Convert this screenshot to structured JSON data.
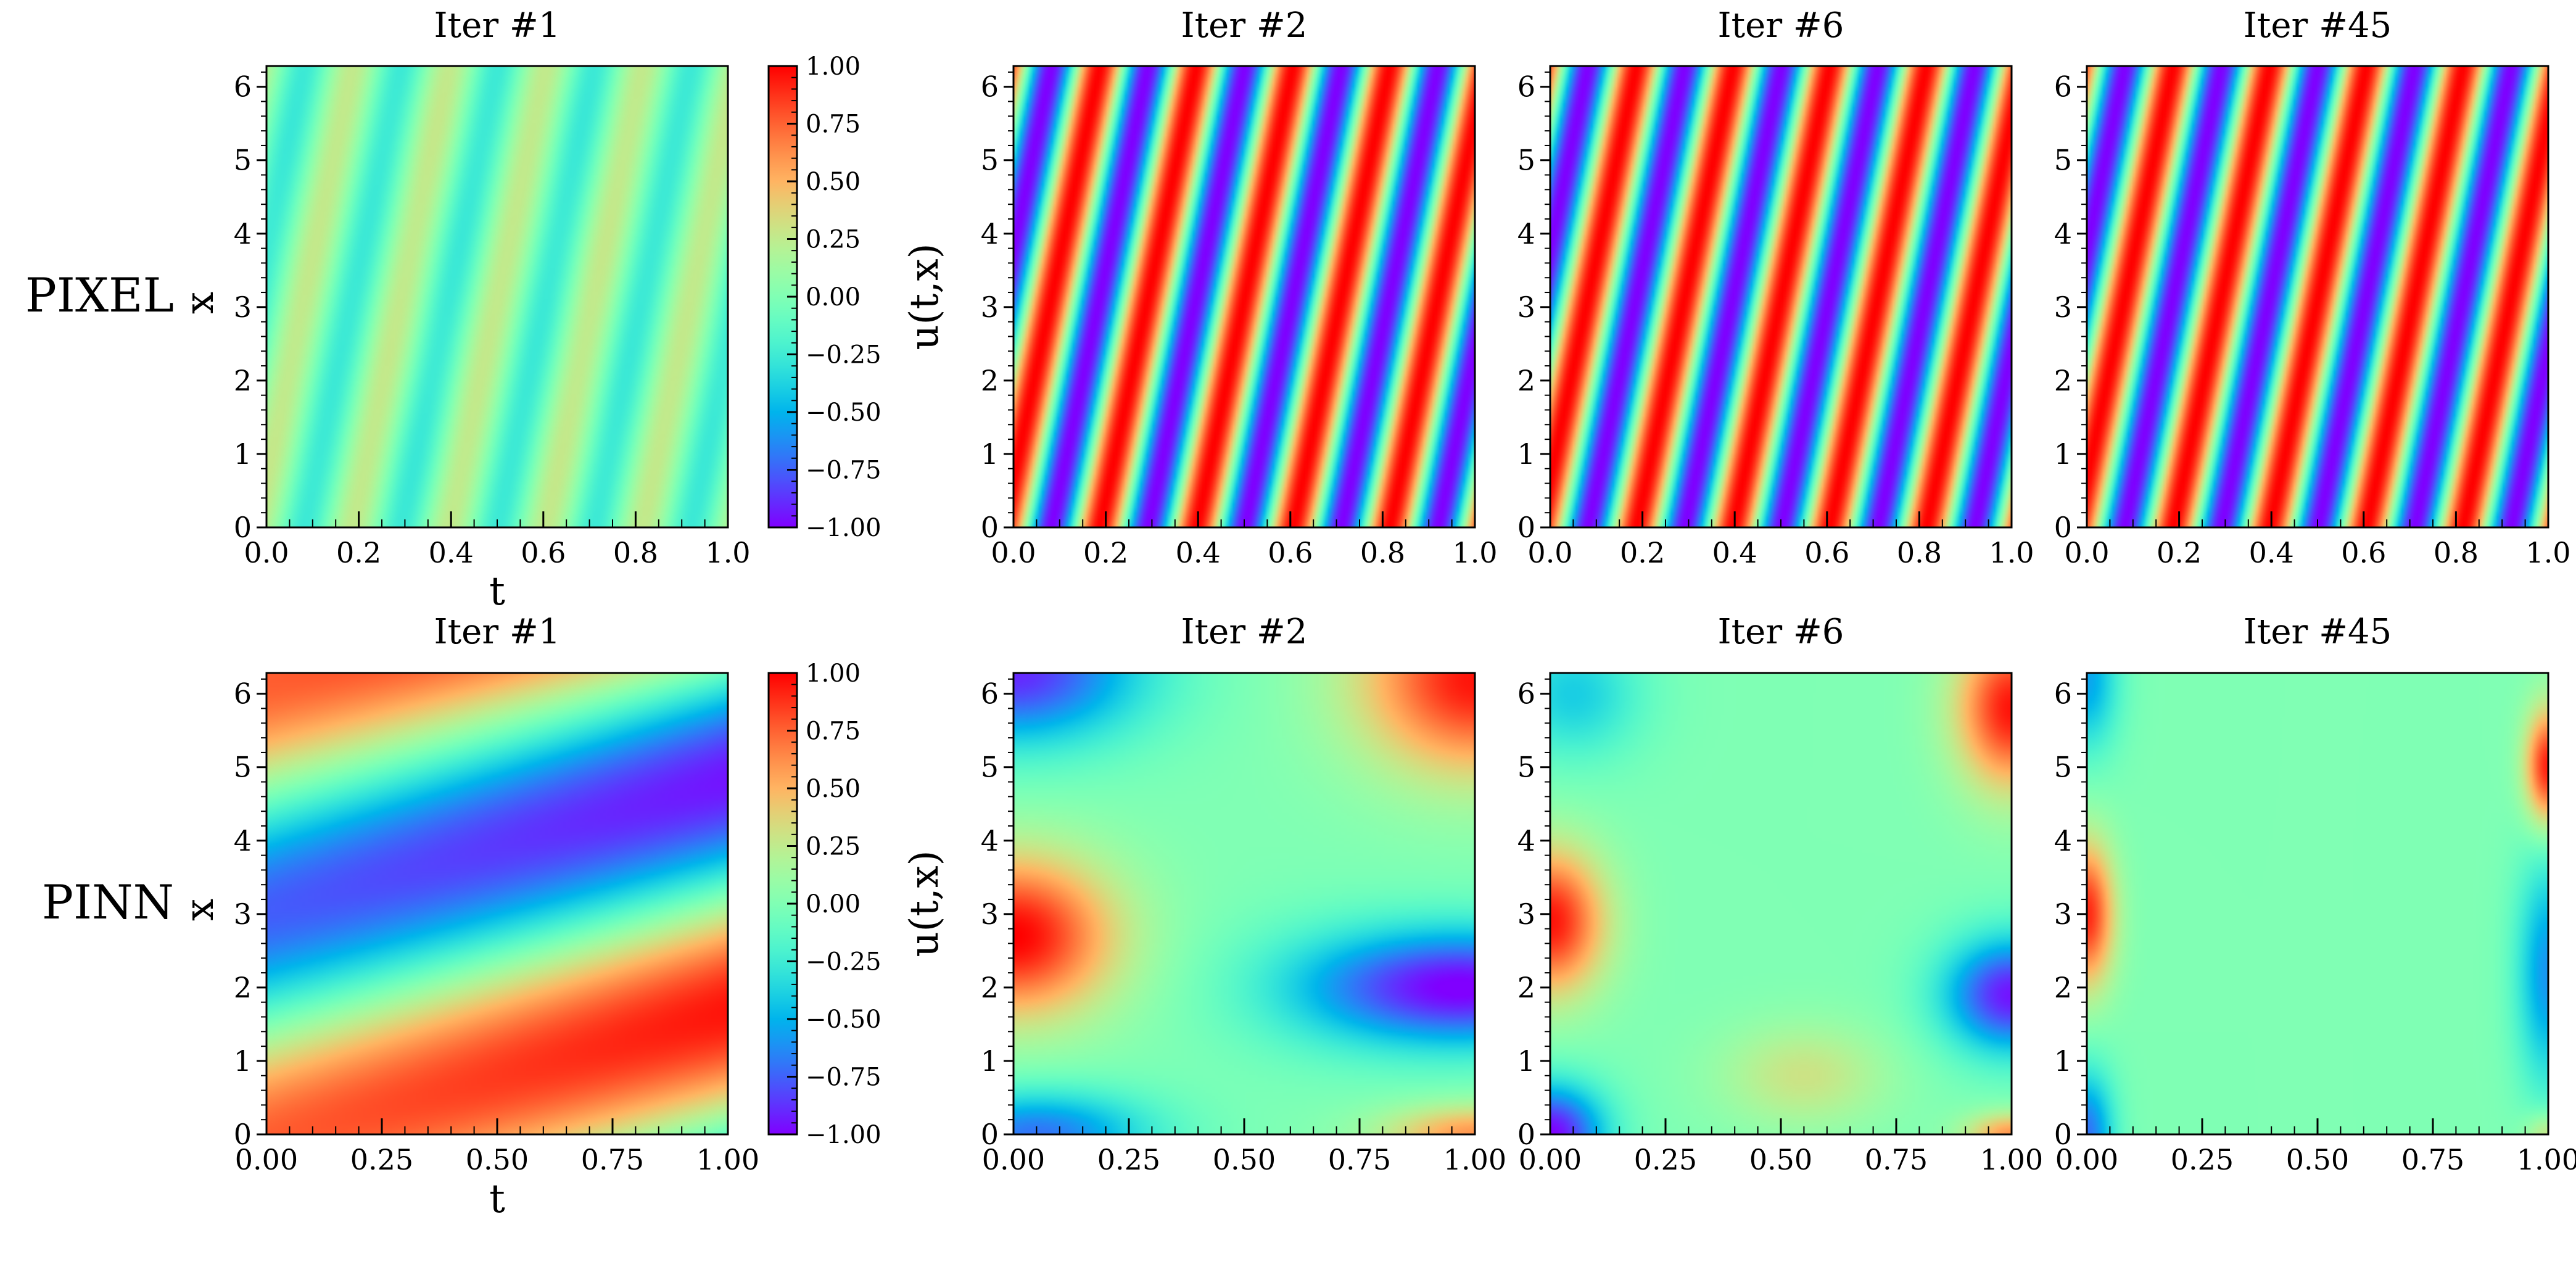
{
  "chart_data": {
    "type": "heatmap",
    "colormap": "rainbow",
    "colorbar": {
      "range": [
        -1.0,
        1.0
      ],
      "ticks": [
        -1.0,
        -0.75,
        -0.5,
        -0.25,
        0.0,
        0.25,
        0.5,
        0.75,
        1.0
      ],
      "tick_labels": [
        "−1.00",
        "−0.75",
        "−0.50",
        "−0.25",
        "0.00",
        "0.25",
        "0.50",
        "0.75",
        "1.00"
      ]
    },
    "rows": [
      {
        "name": "PIXEL",
        "row_label": "PIXEL",
        "xlabel": "t",
        "ylabel": "x",
        "side_label": "u(t,x)",
        "panels": [
          {
            "title": "Iter #1",
            "field": "pixel",
            "amplitude": 0.35,
            "pattern_strength": 0.75
          },
          {
            "title": "Iter #2",
            "field": "pixel",
            "amplitude": 1.0,
            "pattern_strength": 1.0
          },
          {
            "title": "Iter #6",
            "field": "pixel",
            "amplitude": 1.0,
            "pattern_strength": 1.0
          },
          {
            "title": "Iter #45",
            "field": "pixel",
            "amplitude": 1.0,
            "pattern_strength": 1.0
          }
        ],
        "x_range": [
          0.0,
          1.0
        ],
        "x_ticks": [
          0.0,
          0.2,
          0.4,
          0.6,
          0.8,
          1.0
        ],
        "x_tick_labels": [
          "0.0",
          "0.2",
          "0.4",
          "0.6",
          "0.8",
          "1.0"
        ],
        "y_range": [
          0,
          6.283
        ],
        "y_ticks": [
          0,
          1,
          2,
          3,
          4,
          5,
          6
        ],
        "y_tick_labels": [
          "0",
          "1",
          "2",
          "3",
          "4",
          "5",
          "6"
        ]
      },
      {
        "name": "PINN",
        "row_label": "PINN",
        "xlabel": "t",
        "ylabel": "x",
        "side_label": "u(t,x)",
        "panels": [
          {
            "title": "Iter #1",
            "field": "pinn",
            "iteration": 1
          },
          {
            "title": "Iter #2",
            "field": "pinn",
            "iteration": 2
          },
          {
            "title": "Iter #6",
            "field": "pinn",
            "iteration": 6
          },
          {
            "title": "Iter #45",
            "field": "pinn",
            "iteration": 45
          }
        ],
        "x_range": [
          0.0,
          1.0
        ],
        "x_ticks": [
          0.0,
          0.25,
          0.5,
          0.75,
          1.0
        ],
        "x_tick_labels": [
          "0.00",
          "0.25",
          "0.50",
          "0.75",
          "1.00"
        ],
        "y_range": [
          0,
          6.283
        ],
        "y_ticks": [
          0,
          1,
          2,
          3,
          4,
          5,
          6
        ],
        "y_tick_labels": [
          "0",
          "1",
          "2",
          "3",
          "4",
          "5",
          "6"
        ]
      }
    ]
  }
}
